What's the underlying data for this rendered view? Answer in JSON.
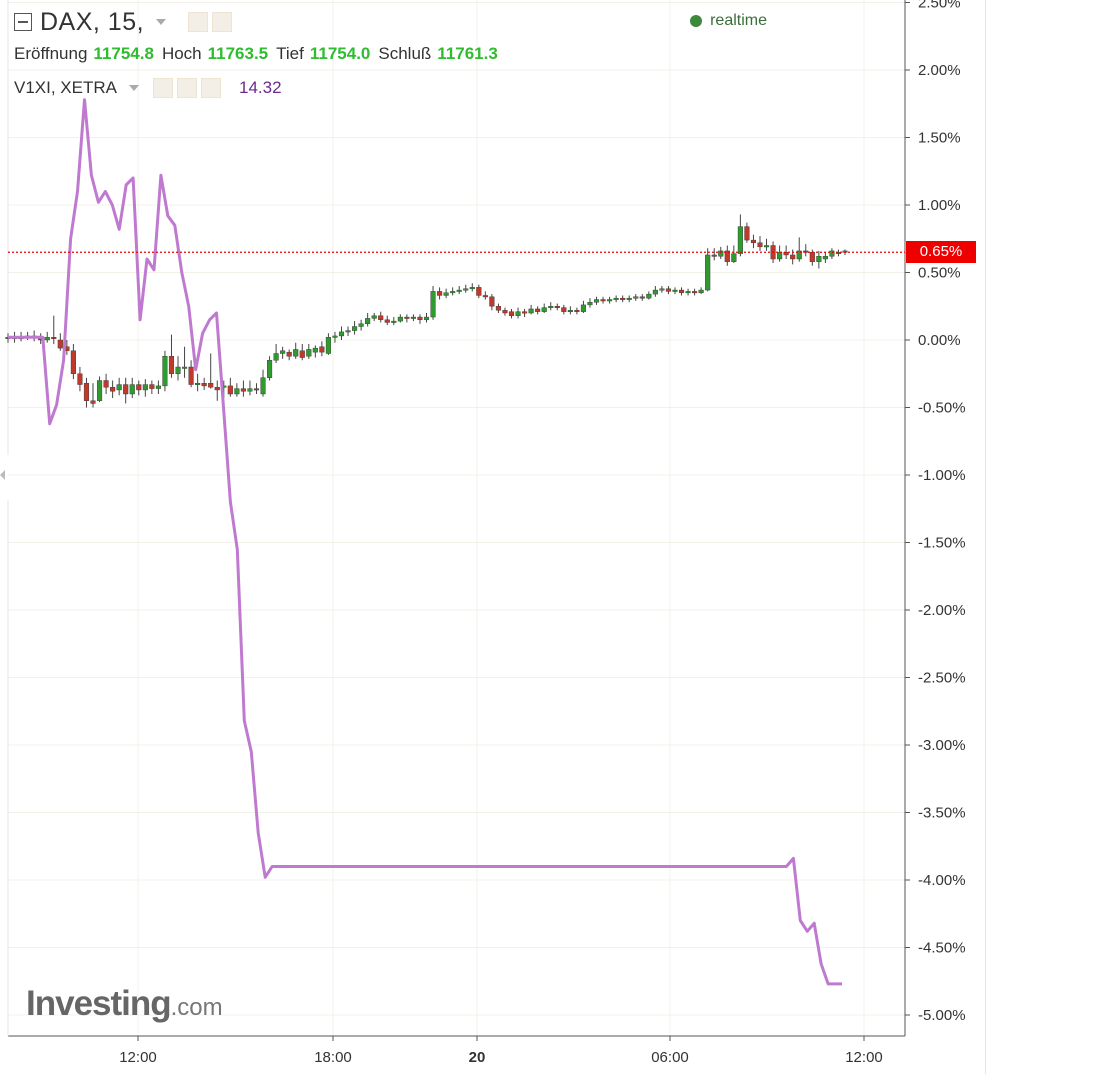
{
  "header": {
    "symbol": "DAX, 15,",
    "realtime": "realtime",
    "ohlc": [
      {
        "label": "Eröffnung",
        "value": "11754.8"
      },
      {
        "label": "Hoch",
        "value": "11763.5"
      },
      {
        "label": "Tief",
        "value": "11754.0"
      },
      {
        "label": "Schluß",
        "value": "11761.3"
      }
    ],
    "overlay": {
      "label": "V1XI, XETRA",
      "value": "14.32"
    }
  },
  "current_value_label": "0.65%",
  "watermark": {
    "brand": "Investing",
    "suffix": ".com"
  },
  "colors": {
    "up": "#2e9b2e",
    "down": "#c0392b",
    "overlay": "#bf7ad0",
    "current": "#ee0000",
    "ohlc_green": "#2ebd2e"
  },
  "chart_data": {
    "type": "candlestick",
    "y_unit": "percent change",
    "ylim": [
      -5.2,
      2.6
    ],
    "y_ticks": [
      "2.50%",
      "2.00%",
      "1.50%",
      "1.00%",
      "0.50%",
      "0.00%",
      "-0.50%",
      "-1.00%",
      "-1.50%",
      "-2.00%",
      "-2.50%",
      "-3.00%",
      "-3.50%",
      "-4.00%",
      "-4.50%",
      "-5.00%"
    ],
    "x_ticks": [
      "12:00",
      "18:00",
      "20",
      "06:00",
      "12:00"
    ],
    "current_value": 0.65,
    "candles": [
      [
        0.02,
        0.02,
        0.05,
        -0.02
      ],
      [
        0.02,
        0.02,
        0.06,
        -0.02
      ],
      [
        0.02,
        0.02,
        0.06,
        -0.01
      ],
      [
        0.02,
        0.03,
        0.06,
        0.0
      ],
      [
        0.03,
        0.02,
        0.07,
        -0.01
      ],
      [
        0.02,
        0.0,
        0.05,
        -0.03
      ],
      [
        0.0,
        0.02,
        0.06,
        -0.02
      ],
      [
        0.02,
        0.01,
        0.18,
        -0.03
      ],
      [
        0.0,
        -0.06,
        0.05,
        -0.08
      ],
      [
        -0.05,
        -0.08,
        0.0,
        -0.11
      ],
      [
        -0.08,
        -0.25,
        -0.03,
        -0.29
      ],
      [
        -0.25,
        -0.33,
        -0.2,
        -0.38
      ],
      [
        -0.32,
        -0.45,
        -0.28,
        -0.5
      ],
      [
        -0.45,
        -0.47,
        -0.32,
        -0.5
      ],
      [
        -0.45,
        -0.3,
        -0.27,
        -0.46
      ],
      [
        -0.3,
        -0.35,
        -0.25,
        -0.4
      ],
      [
        -0.35,
        -0.38,
        -0.3,
        -0.43
      ],
      [
        -0.37,
        -0.33,
        -0.28,
        -0.41
      ],
      [
        -0.33,
        -0.4,
        -0.28,
        -0.47
      ],
      [
        -0.4,
        -0.33,
        -0.28,
        -0.43
      ],
      [
        -0.33,
        -0.37,
        -0.3,
        -0.41
      ],
      [
        -0.37,
        -0.33,
        -0.29,
        -0.42
      ],
      [
        -0.33,
        -0.36,
        -0.3,
        -0.4
      ],
      [
        -0.36,
        -0.34,
        -0.3,
        -0.4
      ],
      [
        -0.34,
        -0.12,
        -0.08,
        -0.38
      ],
      [
        -0.12,
        -0.25,
        0.04,
        -0.28
      ],
      [
        -0.25,
        -0.2,
        -0.12,
        -0.3
      ],
      [
        -0.2,
        -0.2,
        -0.05,
        -0.28
      ],
      [
        -0.2,
        -0.33,
        -0.15,
        -0.35
      ],
      [
        -0.33,
        -0.32,
        -0.25,
        -0.38
      ],
      [
        -0.32,
        -0.34,
        -0.28,
        -0.37
      ],
      [
        -0.32,
        -0.35,
        -0.1,
        -0.36
      ],
      [
        -0.35,
        -0.37,
        -0.3,
        -0.45
      ],
      [
        -0.35,
        -0.34,
        -0.3,
        -0.43
      ],
      [
        -0.34,
        -0.4,
        -0.28,
        -0.42
      ],
      [
        -0.4,
        -0.36,
        -0.32,
        -0.42
      ],
      [
        -0.36,
        -0.38,
        -0.3,
        -0.42
      ],
      [
        -0.38,
        -0.36,
        -0.3,
        -0.41
      ],
      [
        -0.36,
        -0.37,
        -0.32,
        -0.4
      ],
      [
        -0.4,
        -0.28,
        -0.22,
        -0.42
      ],
      [
        -0.28,
        -0.15,
        -0.12,
        -0.3
      ],
      [
        -0.15,
        -0.1,
        -0.03,
        -0.17
      ],
      [
        -0.1,
        -0.08,
        -0.05,
        -0.14
      ],
      [
        -0.09,
        -0.12,
        -0.07,
        -0.15
      ],
      [
        -0.12,
        -0.07,
        -0.02,
        -0.14
      ],
      [
        -0.08,
        -0.13,
        -0.03,
        -0.15
      ],
      [
        -0.12,
        -0.07,
        -0.03,
        -0.14
      ],
      [
        -0.09,
        -0.06,
        -0.04,
        -0.13
      ],
      [
        -0.05,
        -0.09,
        -0.01,
        -0.12
      ],
      [
        -0.1,
        0.02,
        0.05,
        -0.11
      ],
      [
        0.02,
        0.03,
        0.06,
        -0.02
      ],
      [
        0.03,
        0.06,
        0.1,
        0.0
      ],
      [
        0.06,
        0.07,
        0.1,
        0.03
      ],
      [
        0.07,
        0.1,
        0.14,
        0.04
      ],
      [
        0.1,
        0.12,
        0.15,
        0.07
      ],
      [
        0.12,
        0.16,
        0.2,
        0.1
      ],
      [
        0.16,
        0.18,
        0.2,
        0.14
      ],
      [
        0.18,
        0.15,
        0.21,
        0.13
      ],
      [
        0.15,
        0.13,
        0.18,
        0.11
      ],
      [
        0.13,
        0.14,
        0.17,
        0.11
      ],
      [
        0.14,
        0.17,
        0.19,
        0.13
      ],
      [
        0.17,
        0.16,
        0.19,
        0.13
      ],
      [
        0.16,
        0.17,
        0.19,
        0.14
      ],
      [
        0.17,
        0.15,
        0.19,
        0.12
      ],
      [
        0.15,
        0.17,
        0.2,
        0.13
      ],
      [
        0.17,
        0.36,
        0.4,
        0.15
      ],
      [
        0.36,
        0.33,
        0.39,
        0.3
      ],
      [
        0.33,
        0.35,
        0.38,
        0.31
      ],
      [
        0.35,
        0.36,
        0.39,
        0.33
      ],
      [
        0.36,
        0.37,
        0.4,
        0.34
      ],
      [
        0.37,
        0.38,
        0.41,
        0.35
      ],
      [
        0.38,
        0.39,
        0.42,
        0.36
      ],
      [
        0.39,
        0.33,
        0.41,
        0.31
      ],
      [
        0.33,
        0.32,
        0.36,
        0.3
      ],
      [
        0.32,
        0.25,
        0.34,
        0.22
      ],
      [
        0.25,
        0.22,
        0.27,
        0.2
      ],
      [
        0.22,
        0.2,
        0.24,
        0.18
      ],
      [
        0.21,
        0.18,
        0.23,
        0.16
      ],
      [
        0.18,
        0.21,
        0.24,
        0.16
      ],
      [
        0.21,
        0.2,
        0.23,
        0.17
      ],
      [
        0.2,
        0.23,
        0.26,
        0.19
      ],
      [
        0.23,
        0.21,
        0.25,
        0.19
      ],
      [
        0.21,
        0.24,
        0.27,
        0.2
      ],
      [
        0.24,
        0.25,
        0.28,
        0.22
      ],
      [
        0.25,
        0.24,
        0.27,
        0.22
      ],
      [
        0.24,
        0.21,
        0.26,
        0.19
      ],
      [
        0.21,
        0.22,
        0.25,
        0.19
      ],
      [
        0.22,
        0.21,
        0.24,
        0.19
      ],
      [
        0.21,
        0.26,
        0.29,
        0.2
      ],
      [
        0.26,
        0.28,
        0.31,
        0.24
      ],
      [
        0.28,
        0.3,
        0.32,
        0.26
      ],
      [
        0.3,
        0.29,
        0.32,
        0.27
      ],
      [
        0.29,
        0.3,
        0.32,
        0.27
      ],
      [
        0.3,
        0.31,
        0.33,
        0.28
      ],
      [
        0.31,
        0.3,
        0.33,
        0.28
      ],
      [
        0.3,
        0.31,
        0.33,
        0.28
      ],
      [
        0.31,
        0.32,
        0.34,
        0.29
      ],
      [
        0.32,
        0.31,
        0.34,
        0.29
      ],
      [
        0.31,
        0.34,
        0.36,
        0.3
      ],
      [
        0.34,
        0.37,
        0.4,
        0.32
      ],
      [
        0.37,
        0.38,
        0.4,
        0.35
      ],
      [
        0.38,
        0.36,
        0.4,
        0.34
      ],
      [
        0.36,
        0.37,
        0.39,
        0.34
      ],
      [
        0.37,
        0.35,
        0.39,
        0.33
      ],
      [
        0.35,
        0.36,
        0.38,
        0.33
      ],
      [
        0.36,
        0.35,
        0.38,
        0.33
      ],
      [
        0.35,
        0.37,
        0.39,
        0.34
      ],
      [
        0.37,
        0.63,
        0.68,
        0.36
      ],
      [
        0.63,
        0.62,
        0.68,
        0.59
      ],
      [
        0.62,
        0.66,
        0.69,
        0.6
      ],
      [
        0.66,
        0.58,
        0.7,
        0.55
      ],
      [
        0.58,
        0.64,
        0.7,
        0.57
      ],
      [
        0.64,
        0.84,
        0.93,
        0.62
      ],
      [
        0.84,
        0.74,
        0.87,
        0.72
      ],
      [
        0.74,
        0.72,
        0.78,
        0.68
      ],
      [
        0.72,
        0.69,
        0.77,
        0.66
      ],
      [
        0.69,
        0.7,
        0.75,
        0.66
      ],
      [
        0.7,
        0.6,
        0.73,
        0.57
      ],
      [
        0.6,
        0.65,
        0.7,
        0.58
      ],
      [
        0.65,
        0.63,
        0.7,
        0.6
      ],
      [
        0.63,
        0.6,
        0.67,
        0.56
      ],
      [
        0.6,
        0.66,
        0.76,
        0.58
      ],
      [
        0.66,
        0.65,
        0.71,
        0.62
      ],
      [
        0.65,
        0.58,
        0.67,
        0.55
      ],
      [
        0.58,
        0.62,
        0.66,
        0.53
      ],
      [
        0.6,
        0.62,
        0.65,
        0.57
      ],
      [
        0.62,
        0.66,
        0.68,
        0.6
      ],
      [
        0.65,
        0.65,
        0.67,
        0.62
      ],
      [
        0.65,
        0.66,
        0.67,
        0.63
      ]
    ],
    "overlay_series": {
      "name": "V1XI, XETRA",
      "values": [
        0.02,
        0.02,
        0.02,
        0.02,
        0.02,
        0.02,
        -0.62,
        -0.48,
        -0.15,
        0.75,
        1.1,
        1.78,
        1.22,
        1.02,
        1.1,
        1.0,
        0.82,
        1.15,
        1.2,
        0.15,
        0.6,
        0.52,
        1.22,
        0.92,
        0.85,
        0.5,
        0.25,
        -0.22,
        0.05,
        0.15,
        0.2,
        -0.5,
        -1.2,
        -1.55,
        -2.82,
        -3.05,
        -3.65,
        -3.98,
        -3.9,
        -3.9,
        -3.9,
        -3.9,
        -3.9,
        -3.9,
        -3.9,
        -3.9,
        -3.9,
        -3.9,
        -3.9,
        -3.9,
        -3.9,
        -3.9,
        -3.9,
        -3.9,
        -3.9,
        -3.9,
        -3.9,
        -3.9,
        -3.9,
        -3.9,
        -3.9,
        -3.9,
        -3.9,
        -3.9,
        -3.9,
        -3.9,
        -3.9,
        -3.9,
        -3.9,
        -3.9,
        -3.9,
        -3.9,
        -3.9,
        -3.9,
        -3.9,
        -3.9,
        -3.9,
        -3.9,
        -3.9,
        -3.9,
        -3.9,
        -3.9,
        -3.9,
        -3.9,
        -3.9,
        -3.9,
        -3.9,
        -3.9,
        -3.9,
        -3.9,
        -3.9,
        -3.9,
        -3.9,
        -3.9,
        -3.9,
        -3.9,
        -3.9,
        -3.9,
        -3.9,
        -3.9,
        -3.9,
        -3.9,
        -3.9,
        -3.9,
        -3.9,
        -3.9,
        -3.9,
        -3.9,
        -3.9,
        -3.9,
        -3.9,
        -3.9,
        -3.9,
        -3.84,
        -4.3,
        -4.38,
        -4.32,
        -4.62,
        -4.77,
        -4.77,
        -4.77
      ]
    }
  }
}
